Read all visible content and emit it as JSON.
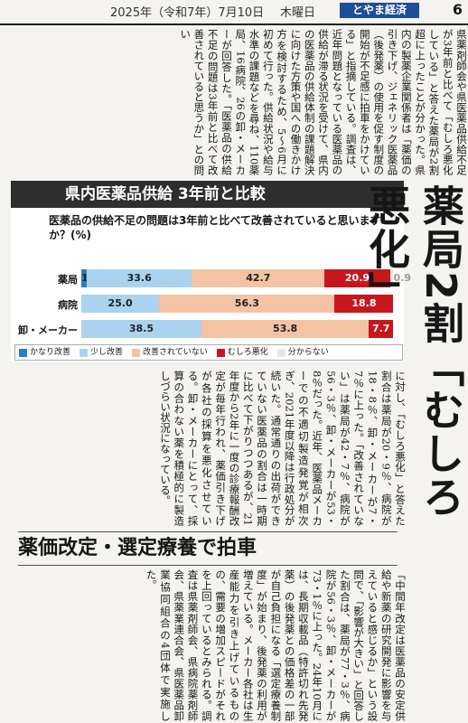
{
  "header": {
    "date": "2025年（令和7年）7月10日",
    "weekday": "木曜日",
    "paper_name": "とやま経済",
    "page_number": "6"
  },
  "article": {
    "top_text": "県薬剤師会や県医薬品供給不足が3年前と比べて「むしろ悪化している」と答えた薬局が2割超に上ったことが分かった。県内の製薬企業関係者は「薬価の引き下げ、ジェネリック医薬品（後発薬）の使用を促す制度の開始が不足感に拍車をかけている」と指摘している。調査は、近年問題となっている医薬品の供給が滞る状況を受けて、県内の医薬品の供給体制の課題解決に向けた方策や国への働きかけ方を検討するため、5〜6月に初めて行った。供給状況や給与水準の課題などを尋ね、110薬局、16病院、26の卸・メーカーが回答した。「医薬品の供給不足の問題は3年前と比べて改善されていると思うか」との問い",
    "middle_text": "に対し、「むしろ悪化」と答えた割合は薬局が20・9％、病院が18・8％、卸・メーカーが7・7％に上った。「改善されていない」は薬局が42・7％、病院が56・3％、卸・メーカーが53・8％だった。近年、医薬品メーカーでの不適切製造発覚が相次ぎ、2021年度以降は行政処分が続いた。通常通りの出荷ができていない医薬品の割合は一時期に比べて下がりつつあるが、21年度から2年に一度の診療報酬改定が毎年行われ、薬価引き下げが各社の採算を悪化させている。卸・メーカーにとって、採算の合わない薬を積極的に製造しづらい状況になっている。",
    "bottom_text": "「中間年改定は医薬品の安定供給や新薬の研究開発に影響を与えていると感じるか」という設問で、「影響が大きい」と回答した割合は、薬局が77・3％、病院が56・3％、卸・メーカーが73・1％に上った。24年10月には、長期収載品（特許切れ先発薬）の後発薬との価格差の一部が自己負担になる「選定療養制度」が始まり、後発薬の利用が増えている。メーカー各社は生産能力を引き上げているものの、需要の増加スピードがそれを上回っているとみられる。調査は県薬剤師会、県病院薬剤師会、県薬業連合会、県医薬品卸業協同組合の4団体で実施した。"
  },
  "headline": "薬局2割「むしろ悪化」",
  "subheadline": "薬価改定・選定療養で拍車",
  "chart_data": {
    "type": "bar",
    "title": "県内医薬品供給 3年前と比較",
    "question": "医薬品の供給不足の問題は3年前と比べて改善されていると思いますか？(%)",
    "categories": [
      "薬局",
      "病院",
      "卸・メーカー"
    ],
    "series": [
      {
        "name": "かなり改善",
        "color": "#2b7fc7",
        "values": [
          1.8,
          0,
          0
        ]
      },
      {
        "name": "少し改善",
        "color": "#a9d3ee",
        "values": [
          33.6,
          25.0,
          38.5
        ]
      },
      {
        "name": "改善されていない",
        "color": "#f3c3a4",
        "values": [
          42.7,
          56.3,
          53.8
        ]
      },
      {
        "name": "むしろ悪化",
        "color": "#c8161d",
        "values": [
          20.9,
          18.8,
          7.7
        ]
      },
      {
        "name": "分からない",
        "color": "#e6e6e6",
        "values": [
          0.9,
          0,
          0
        ]
      }
    ],
    "value_labels": [
      [
        "1.8",
        "33.6",
        "42.7",
        "20.9",
        "0.9"
      ],
      [
        "",
        "25.0",
        "56.3",
        "18.8",
        ""
      ],
      [
        "",
        "38.5",
        "53.8",
        "7.7",
        ""
      ]
    ],
    "xlim": [
      0,
      100
    ]
  }
}
